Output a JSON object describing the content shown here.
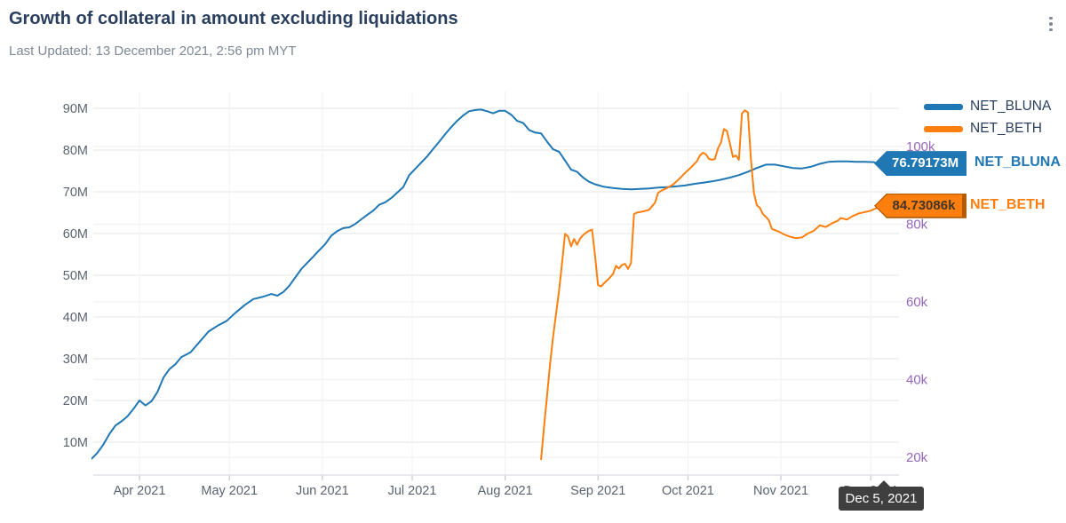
{
  "header": {
    "title": "Growth of collateral in amount excluding liquidations",
    "last_updated": "Last Updated: 13 December 2021, 2:56 pm MYT"
  },
  "colors": {
    "bluna": "#1f77b4",
    "beth": "#ff7f0e",
    "beth_border": "#b35b06",
    "right_axis": "#9467bd",
    "title_text": "#2a3f5f",
    "tick_text": "#5b6370",
    "grid_major": "#e8eaee",
    "grid_minor": "#f1f0f5",
    "axis_line": "#dfe2e8",
    "tooltip_bg": "#3f3f3f"
  },
  "legend": {
    "items": [
      {
        "label": "NET_BLUNA",
        "color": "#1f77b4"
      },
      {
        "label": "NET_BETH",
        "color": "#ff7f0e"
      }
    ]
  },
  "end_labels": {
    "bluna": {
      "value": "76.79173M",
      "name": "NET_BLUNA"
    },
    "beth": {
      "value": "84.73086k",
      "name": "NET_BETH"
    }
  },
  "tooltip": {
    "date": "Dec 5, 2021"
  },
  "chart_data": {
    "type": "line",
    "title": "Growth of collateral in amount excluding liquidations",
    "grid": true,
    "legend_position": "top-right",
    "x_axis": {
      "ticks": [
        {
          "date": "2021-04-01",
          "label": "Apr 2021"
        },
        {
          "date": "2021-05-01",
          "label": "May 2021"
        },
        {
          "date": "2021-06-01",
          "label": "Jun 2021"
        },
        {
          "date": "2021-07-01",
          "label": "Jul 2021"
        },
        {
          "date": "2021-08-01",
          "label": "Aug 2021"
        },
        {
          "date": "2021-09-01",
          "label": "Sep 2021"
        },
        {
          "date": "2021-10-01",
          "label": "Oct 2021"
        },
        {
          "date": "2021-11-01",
          "label": "Nov 2021"
        },
        {
          "date": "2021-12-01",
          "label": "Dec 2021"
        }
      ]
    },
    "y_left": {
      "unit": "M",
      "ticks": [
        {
          "v": 10,
          "label": "10M"
        },
        {
          "v": 20,
          "label": "20M"
        },
        {
          "v": 30,
          "label": "30M"
        },
        {
          "v": 40,
          "label": "40M"
        },
        {
          "v": 50,
          "label": "50M"
        },
        {
          "v": 60,
          "label": "60M"
        },
        {
          "v": 70,
          "label": "70M"
        },
        {
          "v": 80,
          "label": "80M"
        },
        {
          "v": 90,
          "label": "90M"
        }
      ]
    },
    "y_right": {
      "unit": "k",
      "ticks": [
        {
          "v": 20,
          "label": "20k"
        },
        {
          "v": 40,
          "label": "40k"
        },
        {
          "v": 60,
          "label": "60k"
        },
        {
          "v": 80,
          "label": "80k"
        },
        {
          "v": 100,
          "label": "100k"
        }
      ]
    },
    "series": [
      {
        "name": "NET_BLUNA",
        "color": "#1f77b4",
        "axis": "left",
        "unit": "M",
        "last_value_label": "76.79173M",
        "points": [
          [
            "2021-03-16",
            6.0
          ],
          [
            "2021-03-18",
            7.5
          ],
          [
            "2021-03-20",
            9.5
          ],
          [
            "2021-03-22",
            12.0
          ],
          [
            "2021-03-24",
            14.0
          ],
          [
            "2021-03-26",
            15.0
          ],
          [
            "2021-03-28",
            16.2
          ],
          [
            "2021-03-30",
            18.0
          ],
          [
            "2021-04-01",
            20.0
          ],
          [
            "2021-04-03",
            18.8
          ],
          [
            "2021-04-05",
            19.8
          ],
          [
            "2021-04-07",
            22.0
          ],
          [
            "2021-04-09",
            25.5
          ],
          [
            "2021-04-11",
            27.5
          ],
          [
            "2021-04-13",
            28.7
          ],
          [
            "2021-04-15",
            30.4
          ],
          [
            "2021-04-18",
            31.5
          ],
          [
            "2021-04-21",
            34.0
          ],
          [
            "2021-04-24",
            36.5
          ],
          [
            "2021-04-27",
            37.9
          ],
          [
            "2021-04-30",
            39.0
          ],
          [
            "2021-05-03",
            41.0
          ],
          [
            "2021-05-06",
            42.8
          ],
          [
            "2021-05-09",
            44.3
          ],
          [
            "2021-05-12",
            44.8
          ],
          [
            "2021-05-15",
            45.5
          ],
          [
            "2021-05-17",
            45.1
          ],
          [
            "2021-05-19",
            46.0
          ],
          [
            "2021-05-21",
            47.5
          ],
          [
            "2021-05-23",
            49.5
          ],
          [
            "2021-05-25",
            51.5
          ],
          [
            "2021-05-27",
            53.0
          ],
          [
            "2021-05-29",
            54.5
          ],
          [
            "2021-05-31",
            56.0
          ],
          [
            "2021-06-02",
            57.5
          ],
          [
            "2021-06-04",
            59.5
          ],
          [
            "2021-06-06",
            60.6
          ],
          [
            "2021-06-08",
            61.3
          ],
          [
            "2021-06-10",
            61.5
          ],
          [
            "2021-06-12",
            62.3
          ],
          [
            "2021-06-14",
            63.4
          ],
          [
            "2021-06-16",
            64.5
          ],
          [
            "2021-06-18",
            65.5
          ],
          [
            "2021-06-20",
            66.9
          ],
          [
            "2021-06-22",
            67.5
          ],
          [
            "2021-06-24",
            68.5
          ],
          [
            "2021-06-26",
            69.8
          ],
          [
            "2021-06-28",
            71.1
          ],
          [
            "2021-06-30",
            74.0
          ],
          [
            "2021-07-02",
            75.5
          ],
          [
            "2021-07-04",
            77.0
          ],
          [
            "2021-07-06",
            78.5
          ],
          [
            "2021-07-08",
            80.3
          ],
          [
            "2021-07-10",
            82.0
          ],
          [
            "2021-07-12",
            83.8
          ],
          [
            "2021-07-14",
            85.5
          ],
          [
            "2021-07-16",
            87.0
          ],
          [
            "2021-07-18",
            88.3
          ],
          [
            "2021-07-20",
            89.3
          ],
          [
            "2021-07-22",
            89.6
          ],
          [
            "2021-07-24",
            89.7
          ],
          [
            "2021-07-26",
            89.3
          ],
          [
            "2021-07-28",
            88.8
          ],
          [
            "2021-07-30",
            89.4
          ],
          [
            "2021-08-01",
            89.4
          ],
          [
            "2021-08-03",
            88.5
          ],
          [
            "2021-08-05",
            87.0
          ],
          [
            "2021-08-07",
            86.5
          ],
          [
            "2021-08-09",
            84.8
          ],
          [
            "2021-08-11",
            84.2
          ],
          [
            "2021-08-13",
            84.0
          ],
          [
            "2021-08-15",
            82.0
          ],
          [
            "2021-08-17",
            80.2
          ],
          [
            "2021-08-19",
            79.6
          ],
          [
            "2021-08-21",
            77.5
          ],
          [
            "2021-08-23",
            75.3
          ],
          [
            "2021-08-25",
            74.8
          ],
          [
            "2021-08-27",
            73.4
          ],
          [
            "2021-08-29",
            72.4
          ],
          [
            "2021-08-31",
            71.8
          ],
          [
            "2021-09-03",
            71.2
          ],
          [
            "2021-09-06",
            70.9
          ],
          [
            "2021-09-09",
            70.7
          ],
          [
            "2021-09-12",
            70.6
          ],
          [
            "2021-09-15",
            70.7
          ],
          [
            "2021-09-18",
            70.8
          ],
          [
            "2021-09-21",
            71.0
          ],
          [
            "2021-09-24",
            71.1
          ],
          [
            "2021-09-27",
            71.3
          ],
          [
            "2021-09-30",
            71.5
          ],
          [
            "2021-10-03",
            71.9
          ],
          [
            "2021-10-06",
            72.2
          ],
          [
            "2021-10-09",
            72.5
          ],
          [
            "2021-10-12",
            72.9
          ],
          [
            "2021-10-15",
            73.4
          ],
          [
            "2021-10-18",
            74.0
          ],
          [
            "2021-10-21",
            74.8
          ],
          [
            "2021-10-24",
            75.7
          ],
          [
            "2021-10-27",
            76.5
          ],
          [
            "2021-10-30",
            76.5
          ],
          [
            "2021-11-02",
            76.1
          ],
          [
            "2021-11-05",
            75.7
          ],
          [
            "2021-11-08",
            75.6
          ],
          [
            "2021-11-11",
            76.0
          ],
          [
            "2021-11-14",
            76.7
          ],
          [
            "2021-11-17",
            77.2
          ],
          [
            "2021-11-20",
            77.3
          ],
          [
            "2021-11-23",
            77.3
          ],
          [
            "2021-11-26",
            77.2
          ],
          [
            "2021-11-29",
            77.2
          ],
          [
            "2021-12-02",
            77.1
          ],
          [
            "2021-12-04",
            76.5
          ],
          [
            "2021-12-05",
            76.79173
          ]
        ]
      },
      {
        "name": "NET_BETH",
        "color": "#ff7f0e",
        "axis": "right",
        "unit": "k",
        "last_value_label": "84.73086k",
        "points": [
          [
            "2021-08-13",
            19.5
          ],
          [
            "2021-08-14",
            28.0
          ],
          [
            "2021-08-15",
            36.0
          ],
          [
            "2021-08-16",
            44.0
          ],
          [
            "2021-08-17",
            51.0
          ],
          [
            "2021-08-18",
            57.0
          ],
          [
            "2021-08-19",
            63.0
          ],
          [
            "2021-08-20",
            70.0
          ],
          [
            "2021-08-21",
            77.5
          ],
          [
            "2021-08-22",
            76.8
          ],
          [
            "2021-08-23",
            74.3
          ],
          [
            "2021-08-24",
            76.2
          ],
          [
            "2021-08-25",
            74.7
          ],
          [
            "2021-08-26",
            76.3
          ],
          [
            "2021-08-27",
            77.2
          ],
          [
            "2021-08-28",
            77.8
          ],
          [
            "2021-08-29",
            78.3
          ],
          [
            "2021-08-30",
            78.6
          ],
          [
            "2021-08-31",
            72.0
          ],
          [
            "2021-09-01",
            64.3
          ],
          [
            "2021-09-02",
            64.0
          ],
          [
            "2021-09-03",
            64.8
          ],
          [
            "2021-09-04",
            65.5
          ],
          [
            "2021-09-05",
            66.3
          ],
          [
            "2021-09-06",
            67.2
          ],
          [
            "2021-09-07",
            69.3
          ],
          [
            "2021-09-08",
            68.6
          ],
          [
            "2021-09-09",
            69.5
          ],
          [
            "2021-09-10",
            69.8
          ],
          [
            "2021-09-11",
            68.5
          ],
          [
            "2021-09-12",
            70.0
          ],
          [
            "2021-09-13",
            82.6
          ],
          [
            "2021-09-14",
            83.0
          ],
          [
            "2021-09-16",
            83.3
          ],
          [
            "2021-09-18",
            83.7
          ],
          [
            "2021-09-20",
            85.5
          ],
          [
            "2021-09-21",
            88.0
          ],
          [
            "2021-09-22",
            88.6
          ],
          [
            "2021-09-24",
            89.3
          ],
          [
            "2021-09-26",
            90.2
          ],
          [
            "2021-09-28",
            91.6
          ],
          [
            "2021-09-30",
            93.2
          ],
          [
            "2021-10-02",
            94.6
          ],
          [
            "2021-10-04",
            96.2
          ],
          [
            "2021-10-05",
            97.7
          ],
          [
            "2021-10-06",
            98.4
          ],
          [
            "2021-10-07",
            98.0
          ],
          [
            "2021-10-08",
            96.8
          ],
          [
            "2021-10-09",
            96.6
          ],
          [
            "2021-10-10",
            96.8
          ],
          [
            "2021-10-11",
            99.5
          ],
          [
            "2021-10-12",
            101.0
          ],
          [
            "2021-10-13",
            104.5
          ],
          [
            "2021-10-14",
            104.0
          ],
          [
            "2021-10-15",
            100.7
          ],
          [
            "2021-10-16",
            97.3
          ],
          [
            "2021-10-17",
            97.7
          ],
          [
            "2021-10-18",
            96.6
          ],
          [
            "2021-10-19",
            108.5
          ],
          [
            "2021-10-20",
            109.3
          ],
          [
            "2021-10-21",
            108.8
          ],
          [
            "2021-10-22",
            96.8
          ],
          [
            "2021-10-23",
            88.0
          ],
          [
            "2021-10-24",
            84.9
          ],
          [
            "2021-10-25",
            84.2
          ],
          [
            "2021-10-26",
            82.6
          ],
          [
            "2021-10-27",
            81.9
          ],
          [
            "2021-10-28",
            81.0
          ],
          [
            "2021-10-29",
            78.8
          ],
          [
            "2021-10-31",
            78.2
          ],
          [
            "2021-11-02",
            77.4
          ],
          [
            "2021-11-04",
            76.8
          ],
          [
            "2021-11-06",
            76.4
          ],
          [
            "2021-11-08",
            76.6
          ],
          [
            "2021-11-10",
            77.6
          ],
          [
            "2021-11-12",
            78.3
          ],
          [
            "2021-11-14",
            79.7
          ],
          [
            "2021-11-16",
            79.3
          ],
          [
            "2021-11-18",
            80.2
          ],
          [
            "2021-11-20",
            80.9
          ],
          [
            "2021-11-21",
            81.6
          ],
          [
            "2021-11-23",
            81.2
          ],
          [
            "2021-11-25",
            82.1
          ],
          [
            "2021-11-27",
            82.8
          ],
          [
            "2021-11-29",
            83.1
          ],
          [
            "2021-12-01",
            83.5
          ],
          [
            "2021-12-03",
            84.2
          ],
          [
            "2021-12-05",
            84.73086
          ]
        ]
      }
    ]
  }
}
